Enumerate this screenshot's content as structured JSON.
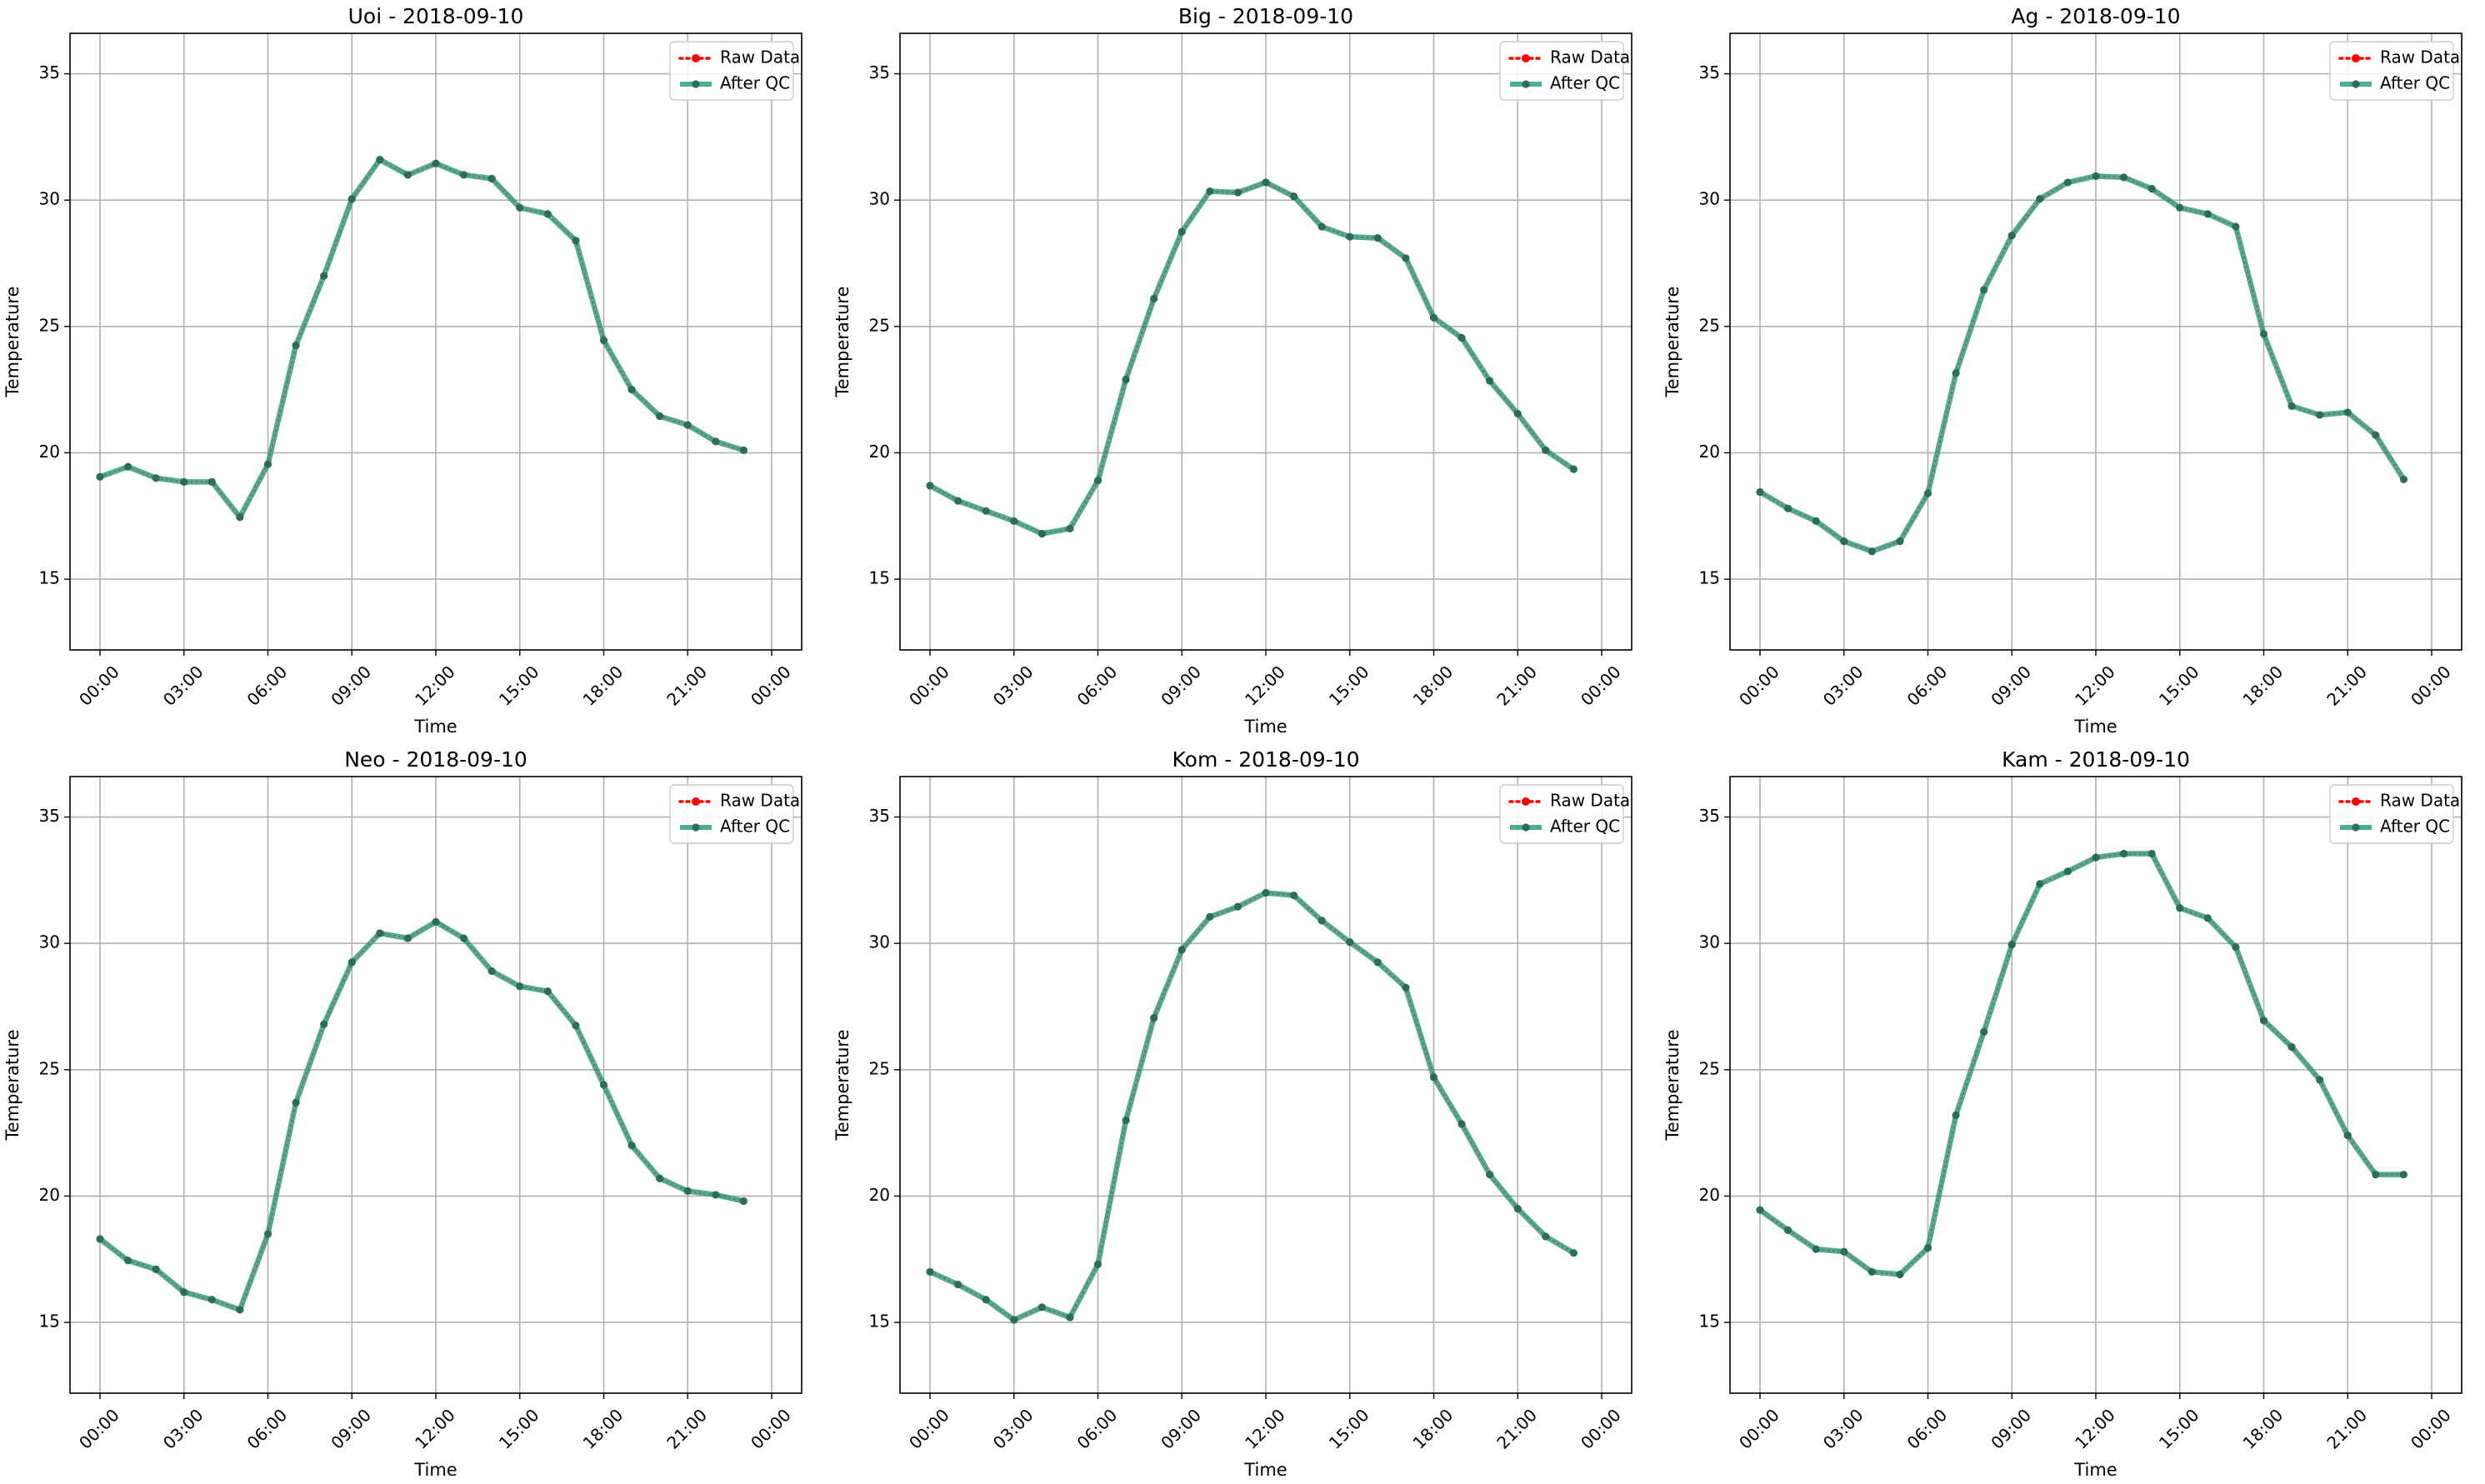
{
  "colors": {
    "raw": "#ff0000",
    "qc": "#2e9e7f",
    "qc_marker": "#2b6d5a",
    "grid": "#b0b0b0",
    "axes": "#000000"
  },
  "legend": {
    "raw_label": "Raw Data",
    "qc_label": "After QC",
    "placement": "top-right"
  },
  "chart_data": [
    {
      "type": "line",
      "title": "Uoi - 2018-09-10",
      "xlabel": "Time",
      "ylabel": "Temperature",
      "xticks": [
        "00:00",
        "03:00",
        "06:00",
        "09:00",
        "12:00",
        "15:00",
        "18:00",
        "21:00",
        "00:00"
      ],
      "yticks": [
        15,
        20,
        25,
        30,
        35
      ],
      "ylim": [
        12.2,
        36.6
      ],
      "grid": true,
      "series": [
        {
          "name": "Raw Data",
          "values": [
            19.05,
            19.45,
            19.0,
            18.85,
            18.85,
            17.45,
            19.55,
            24.25,
            27.0,
            30.05,
            31.6,
            31.0,
            31.45,
            31.0,
            30.85,
            29.7,
            29.45,
            28.4,
            24.45,
            22.5,
            21.45,
            21.1,
            20.45,
            20.1
          ]
        },
        {
          "name": "After QC",
          "values": [
            19.05,
            19.45,
            19.0,
            18.85,
            18.85,
            17.45,
            19.55,
            24.25,
            27.0,
            30.05,
            31.6,
            31.0,
            31.45,
            31.0,
            30.85,
            29.7,
            29.45,
            28.4,
            24.45,
            22.5,
            21.45,
            21.1,
            20.45,
            20.1
          ]
        }
      ]
    },
    {
      "type": "line",
      "title": "Big - 2018-09-10",
      "xlabel": "Time",
      "ylabel": "Temperature",
      "xticks": [
        "00:00",
        "03:00",
        "06:00",
        "09:00",
        "12:00",
        "15:00",
        "18:00",
        "21:00",
        "00:00"
      ],
      "yticks": [
        15,
        20,
        25,
        30,
        35
      ],
      "ylim": [
        12.2,
        36.6
      ],
      "grid": true,
      "series": [
        {
          "name": "Raw Data",
          "values": [
            18.7,
            18.1,
            17.7,
            17.3,
            16.8,
            17.0,
            18.9,
            22.9,
            26.1,
            28.75,
            30.35,
            30.3,
            30.7,
            30.15,
            28.95,
            28.55,
            28.5,
            27.7,
            25.35,
            24.55,
            22.85,
            21.55,
            20.1,
            19.35
          ]
        },
        {
          "name": "After QC",
          "values": [
            18.7,
            18.1,
            17.7,
            17.3,
            16.8,
            17.0,
            18.9,
            22.9,
            26.1,
            28.75,
            30.35,
            30.3,
            30.7,
            30.15,
            28.95,
            28.55,
            28.5,
            27.7,
            25.35,
            24.55,
            22.85,
            21.55,
            20.1,
            19.35
          ]
        }
      ]
    },
    {
      "type": "line",
      "title": "Ag - 2018-09-10",
      "xlabel": "Time",
      "ylabel": "Temperature",
      "xticks": [
        "00:00",
        "03:00",
        "06:00",
        "09:00",
        "12:00",
        "15:00",
        "18:00",
        "21:00",
        "00:00"
      ],
      "yticks": [
        15,
        20,
        25,
        30,
        35
      ],
      "ylim": [
        12.2,
        36.6
      ],
      "grid": true,
      "series": [
        {
          "name": "Raw Data",
          "values": [
            18.45,
            17.8,
            17.3,
            16.5,
            16.1,
            16.5,
            18.4,
            23.15,
            26.45,
            28.6,
            30.05,
            30.7,
            30.95,
            30.9,
            30.45,
            29.7,
            29.45,
            28.95,
            24.7,
            21.85,
            21.5,
            21.6,
            20.7,
            18.95
          ]
        },
        {
          "name": "After QC",
          "values": [
            18.45,
            17.8,
            17.3,
            16.5,
            16.1,
            16.5,
            18.4,
            23.15,
            26.45,
            28.6,
            30.05,
            30.7,
            30.95,
            30.9,
            30.45,
            29.7,
            29.45,
            28.95,
            24.7,
            21.85,
            21.5,
            21.6,
            20.7,
            18.95
          ]
        }
      ]
    },
    {
      "type": "line",
      "title": "Neo - 2018-09-10",
      "xlabel": "Time",
      "ylabel": "Temperature",
      "xticks": [
        "00:00",
        "03:00",
        "06:00",
        "09:00",
        "12:00",
        "15:00",
        "18:00",
        "21:00",
        "00:00"
      ],
      "yticks": [
        15,
        20,
        25,
        30,
        35
      ],
      "ylim": [
        12.2,
        36.6
      ],
      "grid": true,
      "series": [
        {
          "name": "Raw Data",
          "values": [
            18.3,
            17.45,
            17.1,
            16.2,
            15.9,
            15.5,
            18.5,
            23.7,
            26.8,
            29.25,
            30.4,
            30.2,
            30.85,
            30.2,
            28.9,
            28.3,
            28.1,
            26.75,
            24.4,
            22.0,
            20.7,
            20.2,
            20.05,
            19.8
          ]
        },
        {
          "name": "After QC",
          "values": [
            18.3,
            17.45,
            17.1,
            16.2,
            15.9,
            15.5,
            18.5,
            23.7,
            26.8,
            29.25,
            30.4,
            30.2,
            30.85,
            30.2,
            28.9,
            28.3,
            28.1,
            26.75,
            24.4,
            22.0,
            20.7,
            20.2,
            20.05,
            19.8
          ]
        }
      ]
    },
    {
      "type": "line",
      "title": "Kom - 2018-09-10",
      "xlabel": "Time",
      "ylabel": "Temperature",
      "xticks": [
        "00:00",
        "03:00",
        "06:00",
        "09:00",
        "12:00",
        "15:00",
        "18:00",
        "21:00",
        "00:00"
      ],
      "yticks": [
        15,
        20,
        25,
        30,
        35
      ],
      "ylim": [
        12.2,
        36.6
      ],
      "grid": true,
      "series": [
        {
          "name": "Raw Data",
          "values": [
            17.0,
            16.5,
            15.9,
            15.1,
            15.6,
            15.2,
            17.3,
            23.0,
            27.05,
            29.75,
            31.05,
            31.45,
            32.0,
            31.9,
            30.9,
            30.05,
            29.25,
            28.25,
            24.7,
            22.85,
            20.85,
            19.5,
            18.4,
            17.75
          ]
        },
        {
          "name": "After QC",
          "values": [
            17.0,
            16.5,
            15.9,
            15.1,
            15.6,
            15.2,
            17.3,
            23.0,
            27.05,
            29.75,
            31.05,
            31.45,
            32.0,
            31.9,
            30.9,
            30.05,
            29.25,
            28.25,
            24.7,
            22.85,
            20.85,
            19.5,
            18.4,
            17.75
          ]
        }
      ]
    },
    {
      "type": "line",
      "title": "Kam - 2018-09-10",
      "xlabel": "Time",
      "ylabel": "Temperature",
      "xticks": [
        "00:00",
        "03:00",
        "06:00",
        "09:00",
        "12:00",
        "15:00",
        "18:00",
        "21:00",
        "00:00"
      ],
      "yticks": [
        15,
        20,
        25,
        30,
        35
      ],
      "ylim": [
        12.2,
        36.6
      ],
      "grid": true,
      "series": [
        {
          "name": "Raw Data",
          "values": [
            19.45,
            18.65,
            17.9,
            17.8,
            17.0,
            16.9,
            17.95,
            23.2,
            26.5,
            29.95,
            32.35,
            32.85,
            33.4,
            33.55,
            33.55,
            31.4,
            31.0,
            29.85,
            26.95,
            25.9,
            24.6,
            22.4,
            20.85,
            20.85
          ]
        },
        {
          "name": "After QC",
          "values": [
            19.45,
            18.65,
            17.9,
            17.8,
            17.0,
            16.9,
            17.95,
            23.2,
            26.5,
            29.95,
            32.35,
            32.85,
            33.4,
            33.55,
            33.55,
            31.4,
            31.0,
            29.85,
            26.95,
            25.9,
            24.6,
            22.4,
            20.85,
            20.85
          ]
        }
      ]
    }
  ]
}
